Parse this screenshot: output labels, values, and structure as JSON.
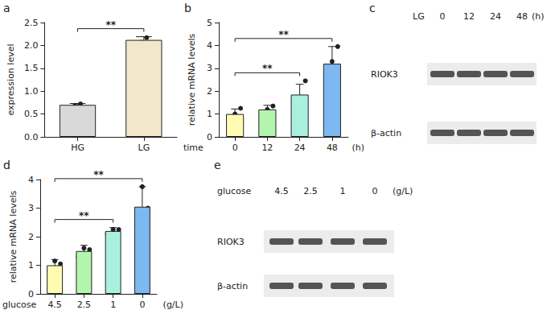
{
  "chart_data": [
    {
      "panel": "a",
      "type": "bar",
      "categories": [
        "HG",
        "LG"
      ],
      "values": [
        0.7,
        2.12
      ],
      "errors": [
        0.03,
        0.07
      ],
      "points": [
        [
          0.68,
          0.72
        ],
        [
          2.07,
          2.17
        ]
      ],
      "colors": [
        "#d9d9d9",
        "#f2e8c9"
      ],
      "ylabel": "expression level",
      "ylim": [
        0,
        2.5
      ],
      "yticks": [
        {
          "value": 0,
          "label": "0.0"
        },
        0.5,
        {
          "value": 1,
          "label": "1.0"
        },
        1.5,
        {
          "value": 2,
          "label": "2.0"
        },
        2.5
      ],
      "annotations": [
        {
          "from": 0,
          "to": 1,
          "text": "**"
        }
      ]
    },
    {
      "panel": "b",
      "type": "bar",
      "categories": [
        "0",
        "12",
        "24",
        "48"
      ],
      "values": [
        1.0,
        1.2,
        1.85,
        3.2
      ],
      "errors": [
        0.22,
        0.18,
        0.45,
        0.75
      ],
      "points": [
        [
          0.8,
          1.0,
          1.25
        ],
        [
          1.05,
          1.2,
          1.35
        ],
        [
          1.45,
          1.65,
          2.45
        ],
        [
          2.45,
          3.3,
          3.95
        ]
      ],
      "colors": [
        "#fffbb3",
        "#b3f5ad",
        "#a9f0df",
        "#7db8f0"
      ],
      "ylabel": "relative mRNA levels",
      "xlabel": "time",
      "x_unit": "(h)",
      "ylim": [
        0,
        5
      ],
      "yticks": [
        0,
        1,
        2,
        3,
        4,
        5
      ],
      "annotations": [
        {
          "from": 0,
          "to": 2,
          "text": "**"
        },
        {
          "from": 0,
          "to": 3,
          "text": "**"
        }
      ]
    },
    {
      "panel": "d",
      "type": "bar",
      "categories": [
        "4.5",
        "2.5",
        "1",
        "0"
      ],
      "values": [
        1.0,
        1.5,
        2.2,
        3.05
      ],
      "errors": [
        0.2,
        0.2,
        0.12,
        0.7
      ],
      "points": [
        [
          0.8,
          1.15,
          1.05
        ],
        [
          1.3,
          1.6,
          1.55
        ],
        [
          2.1,
          2.25,
          2.25
        ],
        [
          2.4,
          3.75,
          3.0
        ]
      ],
      "colors": [
        "#fffbb3",
        "#b3f5ad",
        "#a9f0df",
        "#7db8f0"
      ],
      "ylabel": "relative mRNA levels",
      "xlabel": "glucose",
      "x_unit": "(g/L)",
      "ylim": [
        0,
        4
      ],
      "yticks": [
        0,
        1,
        2,
        3,
        4
      ],
      "annotations": [
        {
          "from": 0,
          "to": 2,
          "text": "**"
        },
        {
          "from": 0,
          "to": 3,
          "text": "**"
        }
      ]
    }
  ],
  "blots": [
    {
      "panel": "c",
      "header_label": "LG",
      "lanes": [
        "0",
        "12",
        "24",
        "48"
      ],
      "unit": "(h)",
      "rows": [
        "RIOK3",
        "β-actin"
      ]
    },
    {
      "panel": "e",
      "header_label": "glucose",
      "lanes": [
        "4.5",
        "2.5",
        "1",
        "0"
      ],
      "unit": "(g/L)",
      "rows": [
        "RIOK3",
        "β-actin"
      ]
    }
  ]
}
